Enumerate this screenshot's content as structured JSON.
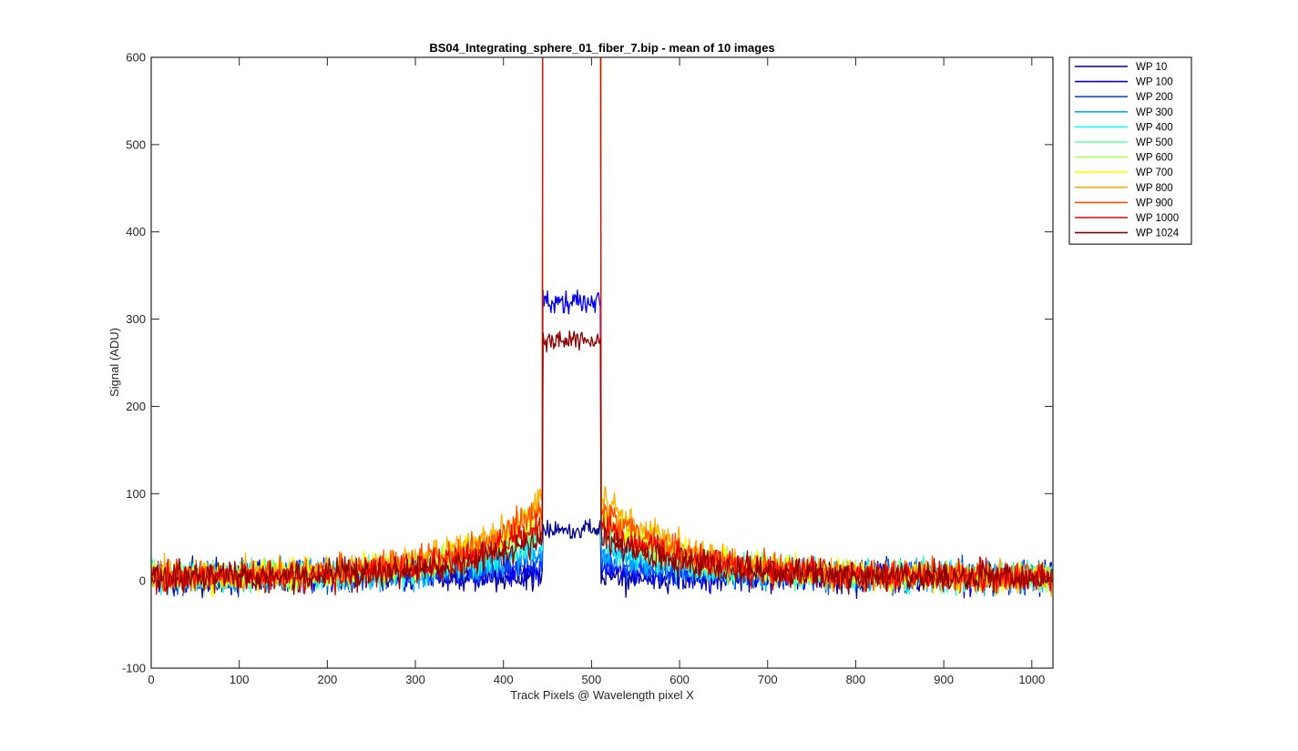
{
  "chart_data": {
    "type": "line",
    "title": "BS04_Integrating_sphere_01_fiber_7.bip - mean of 10 images",
    "xlabel": "Track Pixels @ Wavelength pixel X",
    "ylabel": "Signal (ADU)",
    "xlim": [
      0,
      1024
    ],
    "ylim": [
      -100,
      600
    ],
    "xticks": [
      0,
      100,
      200,
      300,
      400,
      500,
      600,
      700,
      800,
      900,
      1000
    ],
    "yticks": [
      -100,
      0,
      100,
      200,
      300,
      400,
      500,
      600
    ],
    "grid": false,
    "legend_position": "outside-top-right",
    "x_range_points": [
      0,
      1023
    ],
    "series": [
      {
        "name": "WP 10",
        "color": "#00008F",
        "plateau": 60,
        "shoulder": 0,
        "noise": 12
      },
      {
        "name": "WP 100",
        "color": "#0000EF",
        "plateau": 320,
        "shoulder": 10,
        "noise": 12
      },
      {
        "name": "WP 200",
        "color": "#0050FF",
        "plateau": 1000,
        "shoulder": 20,
        "noise": 12
      },
      {
        "name": "WP 300",
        "color": "#00AFFF",
        "plateau": 1000,
        "shoulder": 30,
        "noise": 12
      },
      {
        "name": "WP 400",
        "color": "#10FFEF",
        "plateau": 1000,
        "shoulder": 40,
        "noise": 12
      },
      {
        "name": "WP 500",
        "color": "#60FF9F",
        "plateau": 1000,
        "shoulder": 55,
        "noise": 12
      },
      {
        "name": "WP 600",
        "color": "#AFFF50",
        "plateau": 1000,
        "shoulder": 65,
        "noise": 12
      },
      {
        "name": "WP 700",
        "color": "#FFFF00",
        "plateau": 1000,
        "shoulder": 75,
        "noise": 12
      },
      {
        "name": "WP 800",
        "color": "#FFAF00",
        "plateau": 1000,
        "shoulder": 90,
        "noise": 12
      },
      {
        "name": "WP 900",
        "color": "#FF5000",
        "plateau": 1000,
        "shoulder": 80,
        "noise": 12
      },
      {
        "name": "WP 1000",
        "color": "#EF0000",
        "plateau": 1000,
        "shoulder": 60,
        "noise": 12
      },
      {
        "name": "WP 1024",
        "color": "#8F0000",
        "plateau": 275,
        "shoulder": 45,
        "noise": 12
      }
    ]
  }
}
